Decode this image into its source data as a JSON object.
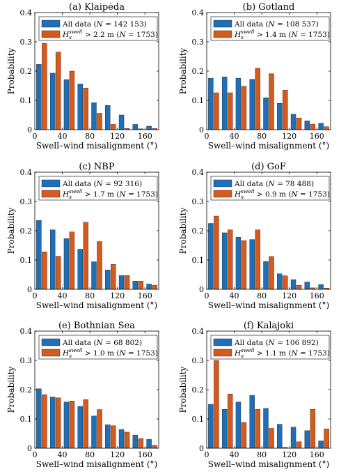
{
  "colors": {
    "all": "#1f6fb8",
    "swell": "#d55a1e"
  },
  "chart_data": [
    {
      "type": "bar",
      "title": "(a) Klaipėda",
      "xlabel": "Swell–wind misalignment (°)",
      "ylabel": "Probability",
      "xlim": [
        0,
        180
      ],
      "ylim": [
        0,
        0.4
      ],
      "xticks": [
        "0",
        "40",
        "80",
        "120",
        "160"
      ],
      "yticks": [
        "0",
        "0.1",
        "0.2",
        "0.3",
        "0.4"
      ],
      "bin_centers": [
        10,
        30,
        50,
        70,
        90,
        110,
        130,
        150,
        170
      ],
      "legend": {
        "placement": "top-right",
        "entries": [
          "All data (N = 142 153)",
          "Hs^swell > 2.2 m (N = 1753)"
        ]
      },
      "series": [
        {
          "name": "All data",
          "values": [
            0.223,
            0.193,
            0.171,
            0.156,
            0.092,
            0.083,
            0.05,
            0.018,
            0.012
          ]
        },
        {
          "name": "Hs swell > 2.2 m",
          "values": [
            0.295,
            0.265,
            0.2,
            0.142,
            0.056,
            0.018,
            0.004,
            0.003,
            0.004
          ]
        }
      ]
    },
    {
      "type": "bar",
      "title": "(b) Gotland",
      "xlabel": "Swell–wind misalignment (°)",
      "ylabel": "Probability",
      "xlim": [
        0,
        180
      ],
      "ylim": [
        0,
        0.4
      ],
      "xticks": [
        "0",
        "40",
        "80",
        "120",
        "160"
      ],
      "yticks": [
        "0",
        "0.1",
        "0.2",
        "0.3",
        "0.4"
      ],
      "bin_centers": [
        10,
        30,
        50,
        70,
        90,
        110,
        130,
        150,
        170
      ],
      "legend": {
        "placement": "top-right",
        "entries": [
          "All data (N = 108 537)",
          "Hs^swell > 1.4 m (N = 1753)"
        ]
      },
      "series": [
        {
          "name": "All data",
          "values": [
            0.176,
            0.18,
            0.176,
            0.172,
            0.109,
            0.09,
            0.053,
            0.03,
            0.022
          ]
        },
        {
          "name": "Hs swell > 1.4 m",
          "values": [
            0.126,
            0.126,
            0.148,
            0.21,
            0.191,
            0.135,
            0.04,
            0.019,
            0.01
          ]
        }
      ]
    },
    {
      "type": "bar",
      "title": "(c) NBP",
      "xlabel": "Swell–wind misalignment (°)",
      "ylabel": "Probability",
      "xlim": [
        0,
        180
      ],
      "ylim": [
        0,
        0.4
      ],
      "xticks": [
        "0",
        "40",
        "80",
        "120",
        "160"
      ],
      "yticks": [
        "0",
        "0.1",
        "0.2",
        "0.3",
        "0.4"
      ],
      "bin_centers": [
        10,
        30,
        50,
        70,
        90,
        110,
        130,
        150,
        170
      ],
      "legend": {
        "placement": "top-right",
        "entries": [
          "All data (N = 92 316)",
          "Hs^swell > 1.7 m (N = 1753)"
        ]
      },
      "series": [
        {
          "name": "All data",
          "values": [
            0.235,
            0.203,
            0.173,
            0.137,
            0.094,
            0.066,
            0.047,
            0.028,
            0.018
          ]
        },
        {
          "name": "Hs swell > 1.7 m",
          "values": [
            0.128,
            0.113,
            0.196,
            0.229,
            0.163,
            0.085,
            0.047,
            0.028,
            0.014
          ]
        }
      ]
    },
    {
      "type": "bar",
      "title": "(d) GoF",
      "xlabel": "Swell–wind misalignment (°)",
      "ylabel": "Probability",
      "xlim": [
        0,
        180
      ],
      "ylim": [
        0,
        0.4
      ],
      "xticks": [
        "0",
        "40",
        "80",
        "120",
        "160"
      ],
      "yticks": [
        "0",
        "0.1",
        "0.2",
        "0.3",
        "0.4"
      ],
      "bin_centers": [
        10,
        30,
        50,
        70,
        90,
        110,
        130,
        150,
        170
      ],
      "legend": {
        "placement": "top-right",
        "entries": [
          "All data (N = 78 488)",
          "Hs^swell > 0.9 m (N = 1753)"
        ]
      },
      "series": [
        {
          "name": "All data",
          "values": [
            0.225,
            0.193,
            0.178,
            0.17,
            0.095,
            0.053,
            0.033,
            0.025,
            0.016
          ]
        },
        {
          "name": "Hs swell > 0.9 m",
          "values": [
            0.25,
            0.203,
            0.166,
            0.203,
            0.112,
            0.046,
            0.014,
            0.005,
            0.004
          ]
        }
      ]
    },
    {
      "type": "bar",
      "title": "(e) Bothnian Sea",
      "xlabel": "Swell–wind misalignment (°)",
      "ylabel": "Probability",
      "xlim": [
        0,
        180
      ],
      "ylim": [
        0,
        0.4
      ],
      "xticks": [
        "0",
        "40",
        "80",
        "120",
        "160"
      ],
      "yticks": [
        "0",
        "0.1",
        "0.2",
        "0.3",
        "0.4"
      ],
      "bin_centers": [
        10,
        30,
        50,
        70,
        90,
        110,
        130,
        150,
        170
      ],
      "legend": {
        "placement": "top-right",
        "entries": [
          "All data (N = 68 802)",
          "Hs^swell > 1.0 m (N = 1753)"
        ]
      },
      "series": [
        {
          "name": "All data",
          "values": [
            0.203,
            0.175,
            0.158,
            0.143,
            0.11,
            0.08,
            0.064,
            0.045,
            0.03
          ]
        },
        {
          "name": "Hs swell > 1.0 m",
          "values": [
            0.183,
            0.172,
            0.161,
            0.166,
            0.132,
            0.077,
            0.055,
            0.033,
            0.01
          ]
        }
      ]
    },
    {
      "type": "bar",
      "title": "(f) Kalajoki",
      "xlabel": "Swell–wind misalignment (°)",
      "ylabel": "Probability",
      "xlim": [
        0,
        180
      ],
      "ylim": [
        0,
        0.4
      ],
      "xticks": [
        "0",
        "40",
        "80",
        "120",
        "160"
      ],
      "yticks": [
        "0",
        "0.1",
        "0.2",
        "0.3",
        "0.4"
      ],
      "bin_centers": [
        10,
        30,
        50,
        70,
        90,
        110,
        130,
        150,
        170
      ],
      "legend": {
        "placement": "top-right",
        "entries": [
          "All data (N = 106 892)",
          "Hs^swell > 1.1 m (N = 1753)"
        ]
      },
      "series": [
        {
          "name": "All data",
          "values": [
            0.15,
            0.133,
            0.158,
            0.18,
            0.136,
            0.082,
            0.072,
            0.06,
            0.025
          ]
        },
        {
          "name": "Hs swell > 1.1 m",
          "values": [
            0.3,
            0.185,
            0.088,
            0.133,
            0.068,
            0.003,
            0.022,
            0.133,
            0.066
          ]
        }
      ]
    }
  ]
}
